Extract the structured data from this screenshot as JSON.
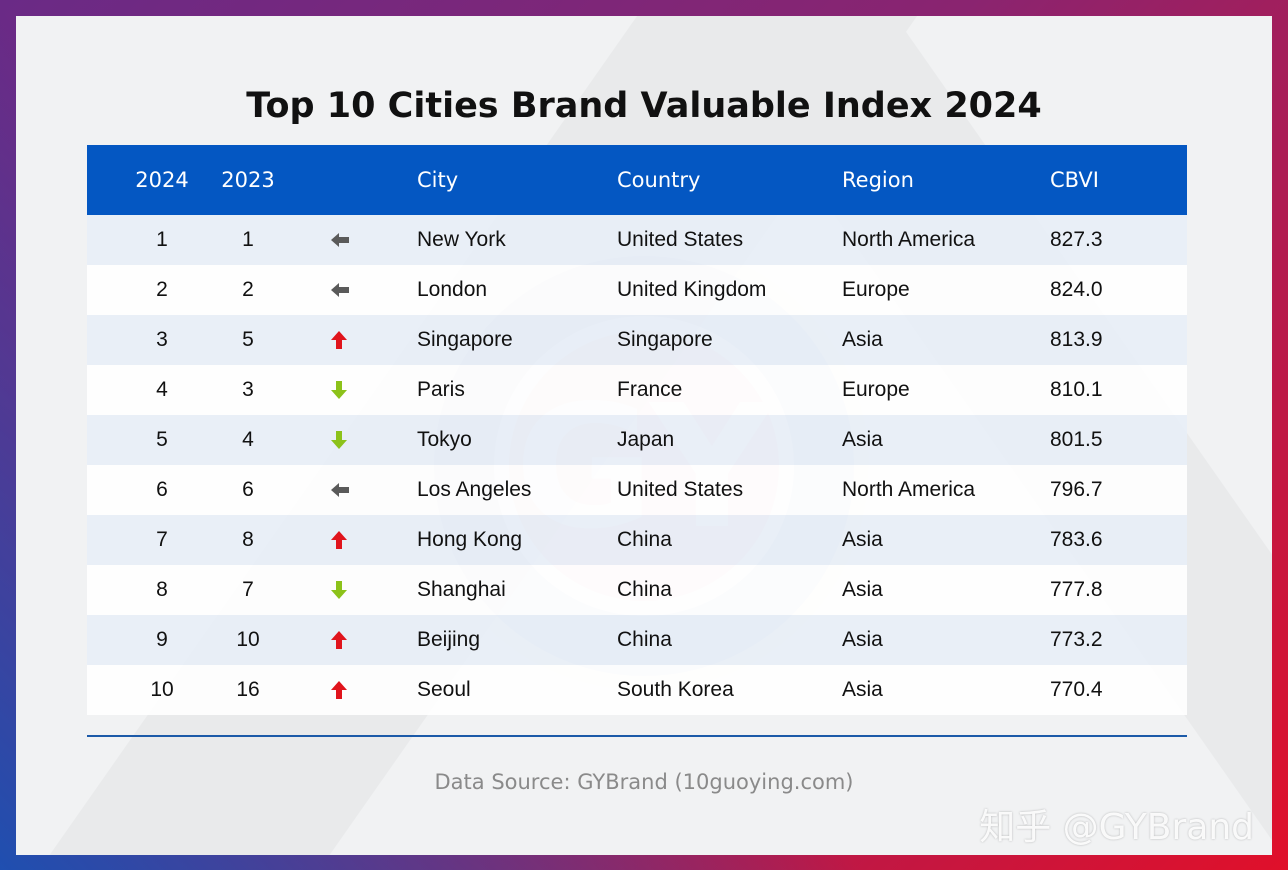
{
  "title": "Top 10 Cities Brand Valuable Index 2024",
  "columns": [
    "2024",
    "2023",
    "",
    "City",
    "Country",
    "Region",
    "CBVI"
  ],
  "rows": [
    {
      "rank_2024": "1",
      "rank_2023": "1",
      "trend": "unchanged",
      "city": "New York",
      "country": "United States",
      "region": "North America",
      "cbvi": "827.3"
    },
    {
      "rank_2024": "2",
      "rank_2023": "2",
      "trend": "unchanged",
      "city": "London",
      "country": "United Kingdom",
      "region": "Europe",
      "cbvi": "824.0"
    },
    {
      "rank_2024": "3",
      "rank_2023": "5",
      "trend": "up",
      "city": "Singapore",
      "country": "Singapore",
      "region": "Asia",
      "cbvi": "813.9"
    },
    {
      "rank_2024": "4",
      "rank_2023": "3",
      "trend": "down",
      "city": "Paris",
      "country": "France",
      "region": "Europe",
      "cbvi": "810.1"
    },
    {
      "rank_2024": "5",
      "rank_2023": "4",
      "trend": "down",
      "city": "Tokyo",
      "country": "Japan",
      "region": "Asia",
      "cbvi": "801.5"
    },
    {
      "rank_2024": "6",
      "rank_2023": "6",
      "trend": "unchanged",
      "city": "Los Angeles",
      "country": "United States",
      "region": "North America",
      "cbvi": "796.7"
    },
    {
      "rank_2024": "7",
      "rank_2023": "8",
      "trend": "up",
      "city": "Hong Kong",
      "country": "China",
      "region": "Asia",
      "cbvi": "783.6"
    },
    {
      "rank_2024": "8",
      "rank_2023": "7",
      "trend": "down",
      "city": "Shanghai",
      "country": "China",
      "region": "Asia",
      "cbvi": "777.8"
    },
    {
      "rank_2024": "9",
      "rank_2023": "10",
      "trend": "up",
      "city": "Beijing",
      "country": "China",
      "region": "Asia",
      "cbvi": "773.2"
    },
    {
      "rank_2024": "10",
      "rank_2023": "16",
      "trend": "up",
      "city": "Seoul",
      "country": "South Korea",
      "region": "Asia",
      "cbvi": "770.4"
    }
  ],
  "source": "Data Source: GYBrand (10guoying.com)",
  "watermark": "知乎 @GYBrand",
  "logo_text": "GLOBAL YEARLY BRAND INSTITUTE GY",
  "colors": {
    "header": "#0457c2",
    "up": "#e0141c",
    "down": "#8cc21a",
    "unchanged": "#5a5a5a"
  }
}
